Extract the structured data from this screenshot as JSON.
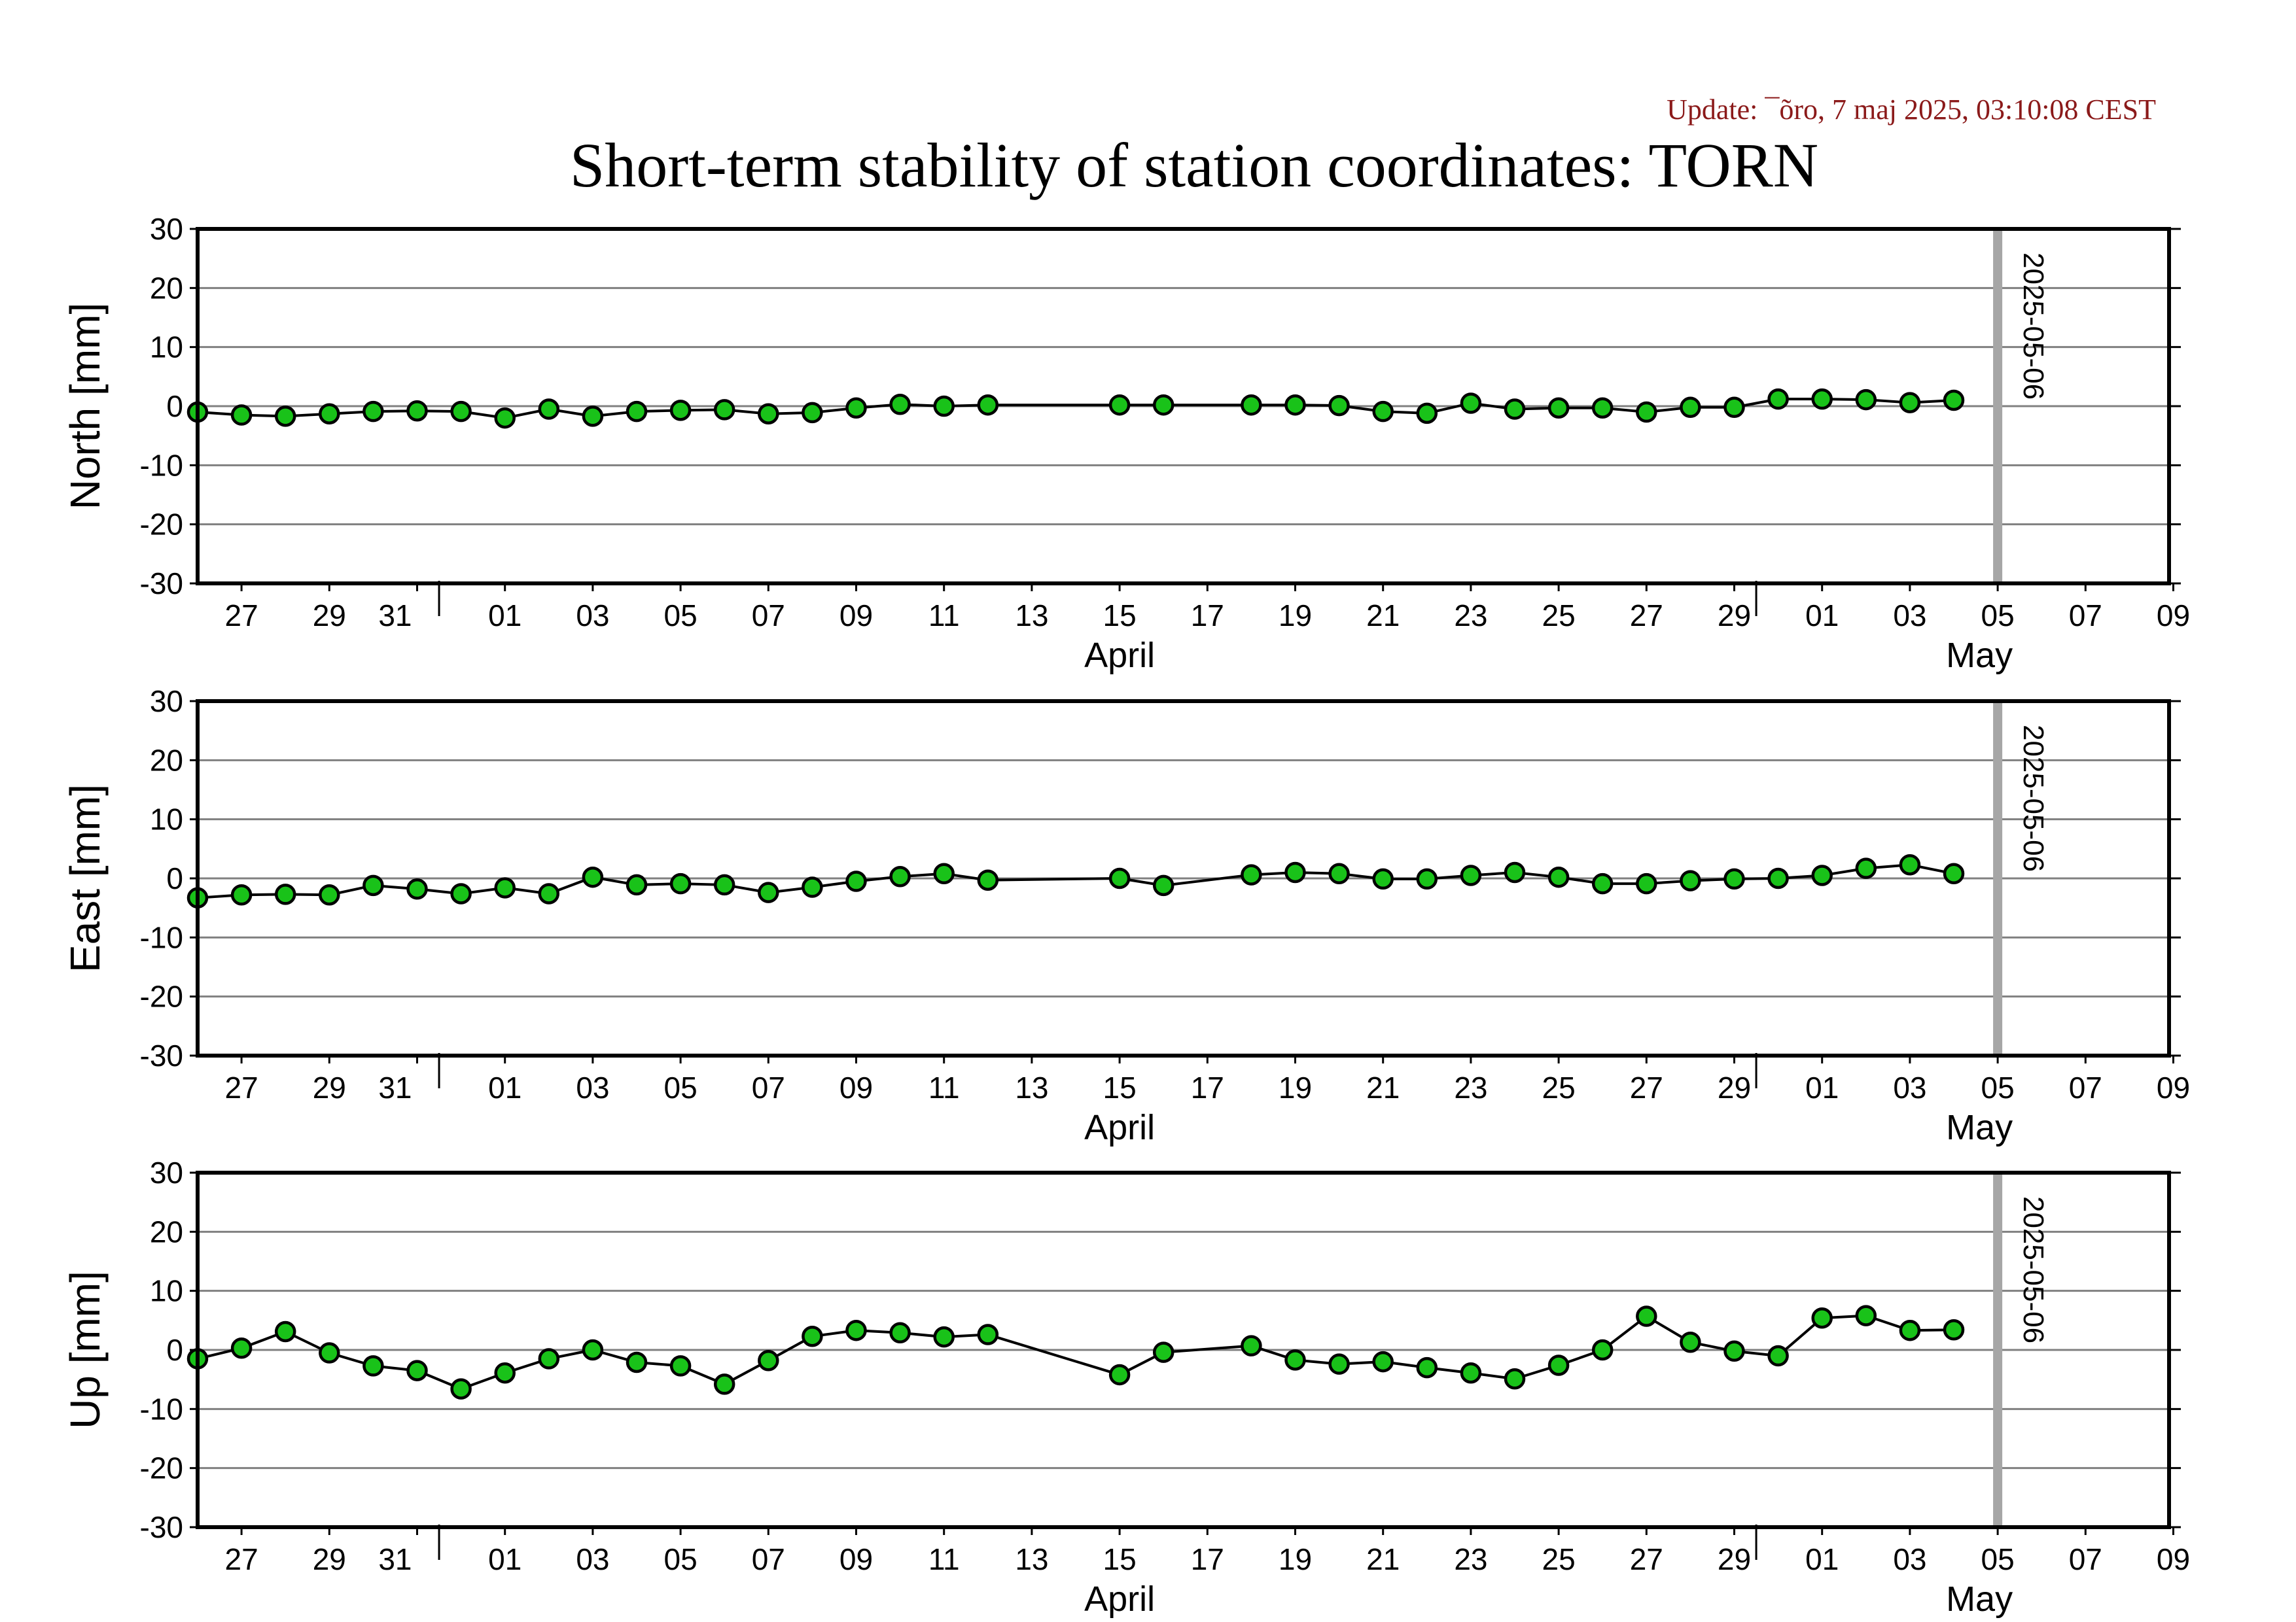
{
  "update_text": "Update: ¯õro, 7 maj 2025, 03:10:08 CEST",
  "title": "Short-term stability of station coordinates: TORN",
  "colors": {
    "update": "#8b1a1a",
    "marker_fill": "#19c219",
    "marker_stroke": "#000000",
    "line": "#000000",
    "grid": "#808080",
    "today_bar": "#a6a6a6"
  },
  "chart_data": {
    "type": "line",
    "x_ticks": [
      "27",
      "29",
      "31",
      "01",
      "03",
      "05",
      "07",
      "09",
      "11",
      "13",
      "15",
      "17",
      "19",
      "21",
      "23",
      "25",
      "27",
      "29",
      "01",
      "03",
      "05",
      "07",
      "09"
    ],
    "month_labels": [
      "April",
      "May"
    ],
    "today_label": "2025-05-06",
    "ylim": [
      -30,
      30
    ],
    "y_ticks": [
      "30",
      "20",
      "10",
      "0",
      "-10",
      "-20",
      "-30"
    ],
    "dates": [
      "03-26",
      "03-27",
      "03-28",
      "03-29",
      "03-30",
      "03-31",
      "04-01",
      "04-02",
      "04-03",
      "04-04",
      "04-05",
      "04-06",
      "04-07",
      "04-08",
      "04-09",
      "04-10",
      "04-11",
      "04-12",
      "04-13",
      "04-16",
      "04-17",
      "04-19",
      "04-20",
      "04-21",
      "04-22",
      "04-23",
      "04-24",
      "04-25",
      "04-26",
      "04-27",
      "04-28",
      "04-29",
      "04-30",
      "05-01",
      "05-02",
      "05-03",
      "05-04",
      "05-05"
    ],
    "panels": [
      {
        "ylabel": "North [mm]",
        "values": [
          -1,
          -1.5,
          -1.7,
          -1.3,
          -0.9,
          -0.8,
          -0.9,
          -2,
          -0.5,
          -1.7,
          -0.9,
          -0.7,
          -0.6,
          -1.3,
          -1.1,
          -0.3,
          0.3,
          0,
          0.2,
          0.2,
          0.2,
          0.2,
          0.2,
          0.1,
          -0.9,
          -1.2,
          0.5,
          -0.5,
          -0.3,
          -0.3,
          -1,
          -0.2,
          -0.2,
          1.2,
          1.2,
          1.1,
          0.6,
          1
        ]
      },
      {
        "ylabel": "East [mm]",
        "values": [
          -3.3,
          -2.8,
          -2.7,
          -2.8,
          -1.2,
          -1.8,
          -2.6,
          -1.6,
          -2.6,
          0.2,
          -1.1,
          -0.9,
          -1.1,
          -2.4,
          -1.5,
          -0.5,
          0.3,
          0.8,
          -0.3,
          0,
          -1.2,
          0.6,
          1,
          0.8,
          -0.1,
          -0.1,
          0.5,
          1,
          0.2,
          -0.9,
          -0.9,
          -0.4,
          -0.1,
          0,
          0.5,
          1.7,
          2.3,
          0.8
        ]
      },
      {
        "ylabel": "Up [mm]",
        "values": [
          -1.5,
          0.3,
          3.1,
          -0.5,
          -2.7,
          -3.5,
          -6.6,
          -3.9,
          -1.5,
          0,
          -2.1,
          -2.7,
          -5.8,
          -1.8,
          2.3,
          3.3,
          2.9,
          2.2,
          2.6,
          -4.2,
          -0.4,
          0.7,
          -1.7,
          -2.4,
          -2,
          -3,
          -3.9,
          -4.9,
          -2.6,
          0,
          5.7,
          1.3,
          -0.2,
          -1,
          5.4,
          5.8,
          3.3,
          3.4
        ]
      }
    ]
  }
}
